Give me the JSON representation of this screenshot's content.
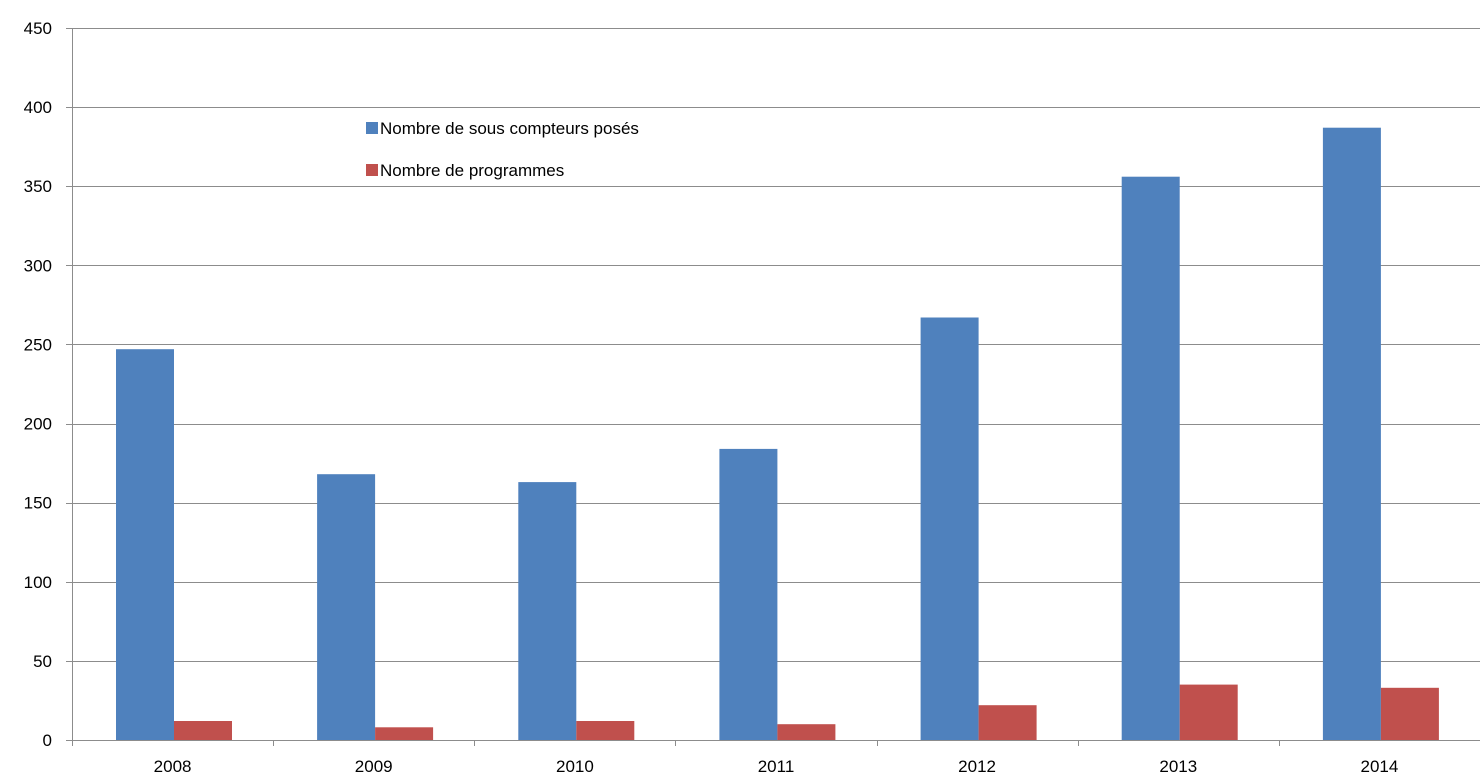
{
  "chart_data": {
    "type": "bar",
    "title": "",
    "xlabel": "",
    "ylabel": "",
    "categories": [
      "2008",
      "2009",
      "2010",
      "2011",
      "2012",
      "2013",
      "2014"
    ],
    "series": [
      {
        "name": "Nombre de sous compteurs posés",
        "color": "#4F81BD",
        "values": [
          247,
          168,
          163,
          184,
          267,
          356,
          387
        ]
      },
      {
        "name": "Nombre de programmes",
        "color": "#C0504D",
        "values": [
          12,
          8,
          12,
          10,
          22,
          35,
          33
        ]
      }
    ],
    "ylim": [
      0,
      450
    ],
    "yticks": [
      0,
      50,
      100,
      150,
      200,
      250,
      300,
      350,
      400,
      450
    ],
    "grid": true,
    "legend_position": "top-left inside plot"
  }
}
